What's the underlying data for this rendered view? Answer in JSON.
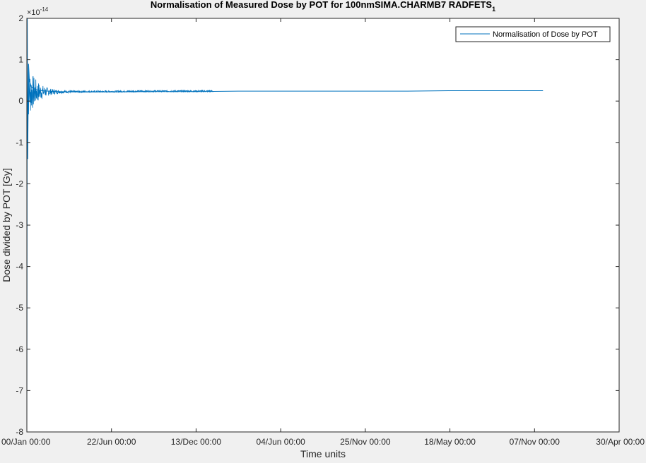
{
  "chart_data": {
    "type": "line",
    "title_main": "Normalisation of Measured Dose by POT for 100nmSIMA.CHARMB7 RADFETS",
    "title_subscript": "1",
    "xlabel": "Time units",
    "ylabel": "Dose divided by POT [Gy]",
    "y_exponent_label": "×10",
    "y_exponent_value": "-14",
    "ylim": [
      -8,
      2
    ],
    "y_ticks": [
      "-8",
      "-7",
      "-6",
      "-5",
      "-4",
      "-3",
      "-2",
      "-1",
      "0",
      "1",
      "2"
    ],
    "x_ticks": [
      "00/Jan 00:00",
      "22/Jun 00:00",
      "13/Dec 00:00",
      "04/Jun 00:00",
      "25/Nov 00:00",
      "18/May 00:00",
      "07/Nov 00:00",
      "30/Apr 00:00"
    ],
    "xlim": [
      0,
      7
    ],
    "grid": false,
    "legend_location": "top-right",
    "series": [
      {
        "name": "Normalisation of Dose by POT",
        "color": "#0072bd",
        "x": [
          0,
          0.005,
          0.01,
          0.02,
          0.03,
          0.05,
          0.08,
          0.12,
          0.18,
          0.25,
          0.35,
          0.5,
          0.7,
          1.0,
          1.5,
          2.0,
          2.5,
          3.0,
          3.5,
          4.0,
          4.5,
          5.0,
          5.5,
          6.0,
          6.1
        ],
        "y": [
          -8.0,
          2.0,
          -1.4,
          0.9,
          0.5,
          0.35,
          0.3,
          0.27,
          0.25,
          0.24,
          0.23,
          0.22,
          0.22,
          0.22,
          0.23,
          0.23,
          0.24,
          0.24,
          0.24,
          0.24,
          0.24,
          0.25,
          0.25,
          0.25,
          0.25
        ]
      }
    ]
  }
}
